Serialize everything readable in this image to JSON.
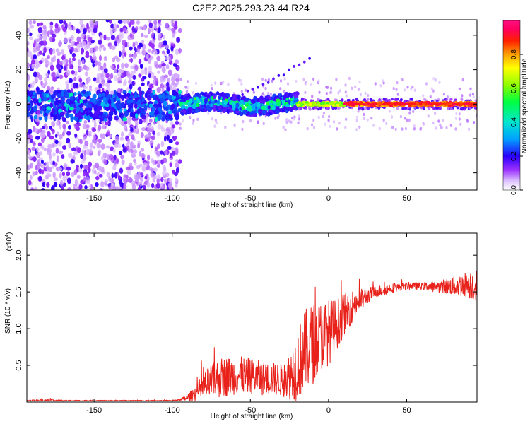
{
  "title": "C2E2.2025.293.23.44.R24",
  "chart_data": [
    {
      "type": "heatmap",
      "name": "spectrogram",
      "xlabel": "Height of straight line (km)",
      "ylabel": "Frequency (Hz)",
      "xlim": [
        -193,
        95
      ],
      "ylim": [
        -50,
        49
      ],
      "xticks": [
        -150,
        -100,
        -50,
        0,
        50
      ],
      "yticks": [
        -40,
        -20,
        0,
        20,
        40
      ],
      "colorbar": {
        "label": "Normalized spectral amplitude",
        "range": [
          0,
          1
        ],
        "ticks": [
          0.0,
          0.2,
          0.4,
          0.6,
          0.8
        ]
      },
      "regions": [
        {
          "x_range": [
            -193,
            -95
          ],
          "freq_range": [
            -50,
            49
          ],
          "amplitude": "0.05-0.25",
          "pattern": "scattered noise"
        },
        {
          "x_range": [
            -193,
            -95
          ],
          "freq_range": [
            -8,
            6
          ],
          "amplitude": "0.2-0.45",
          "pattern": "band"
        },
        {
          "x_range": [
            -95,
            -20
          ],
          "freq_range": [
            -6,
            5
          ],
          "amplitude": "0.2-0.55",
          "pattern": "wavy band"
        },
        {
          "x_range": [
            -20,
            95
          ],
          "freq_range": [
            -2,
            2
          ],
          "amplitude": "0.6-0.95",
          "pattern": "narrow line at 0 Hz"
        }
      ]
    },
    {
      "type": "line",
      "name": "snr",
      "xlabel": "Height of straight line (km)",
      "ylabel": "SNR (10 * v/v)",
      "y_multiplier": "(x10",
      "y_multiplier_exp": "4",
      "y_multiplier_close": ")",
      "xlim": [
        -193,
        95
      ],
      "ylim": [
        0,
        2.3
      ],
      "xticks": [
        -150,
        -100,
        -50,
        0,
        50
      ],
      "yticks": [
        0.5,
        1.0,
        1.5,
        2.0
      ],
      "ytick_labels": [
        "0.5",
        "1.0",
        "1.5",
        "2.0"
      ],
      "color": "#e8221b",
      "series": [
        {
          "name": "SNR",
          "x": [
            -193,
            -180,
            -170,
            -150,
            -120,
            -100,
            -95,
            -90,
            -85,
            -80,
            -75,
            -70,
            -65,
            -60,
            -55,
            -50,
            -45,
            -40,
            -35,
            -30,
            -25,
            -20,
            -15,
            -10,
            -5,
            0,
            5,
            10,
            15,
            20,
            25,
            30,
            40,
            50,
            60,
            70,
            80,
            90,
            95
          ],
          "y": [
            0.02,
            0.03,
            0.02,
            0.02,
            0.02,
            0.02,
            0.03,
            0.06,
            0.12,
            0.2,
            0.28,
            0.33,
            0.35,
            0.36,
            0.36,
            0.36,
            0.33,
            0.32,
            0.32,
            0.3,
            0.35,
            0.5,
            0.7,
            0.8,
            0.9,
            0.95,
            1.05,
            1.2,
            1.3,
            1.38,
            1.45,
            1.5,
            1.55,
            1.58,
            1.58,
            1.57,
            1.58,
            1.6,
            1.6
          ],
          "noise": [
            0.005,
            0.01,
            0.005,
            0.004,
            0.004,
            0.004,
            0.01,
            0.03,
            0.07,
            0.12,
            0.15,
            0.17,
            0.17,
            0.16,
            0.16,
            0.15,
            0.15,
            0.14,
            0.14,
            0.14,
            0.2,
            0.3,
            0.35,
            0.35,
            0.3,
            0.28,
            0.22,
            0.18,
            0.14,
            0.1,
            0.07,
            0.05,
            0.04,
            0.03,
            0.03,
            0.05,
            0.08,
            0.12,
            0.14
          ]
        }
      ]
    }
  ]
}
